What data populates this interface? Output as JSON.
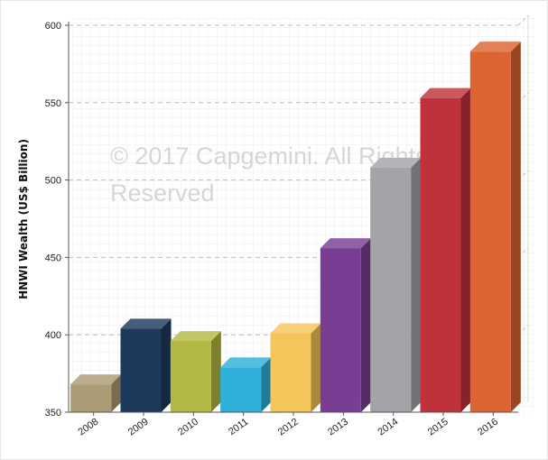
{
  "chart_data": {
    "type": "bar",
    "title": "",
    "xlabel": "",
    "ylabel": "HNWI Wealth (US$ Billion)",
    "categories": [
      "2008",
      "2009",
      "2010",
      "2011",
      "2012",
      "2013",
      "2014",
      "2015",
      "2016"
    ],
    "values": [
      368,
      404,
      396,
      379,
      401,
      456,
      508,
      553,
      583
    ],
    "colors": [
      "#ac9c76",
      "#1c3a5c",
      "#b3b842",
      "#2eb0d8",
      "#f4c55a",
      "#7a3d94",
      "#a3a4a8",
      "#bf323c",
      "#dc6432"
    ],
    "ylim": [
      350,
      600
    ],
    "yticks": [
      350,
      400,
      450,
      500,
      550,
      600
    ],
    "grid": true,
    "legend": "none",
    "watermark": [
      "© 2017 Capgemini. All Rights",
      "Reserved"
    ]
  }
}
